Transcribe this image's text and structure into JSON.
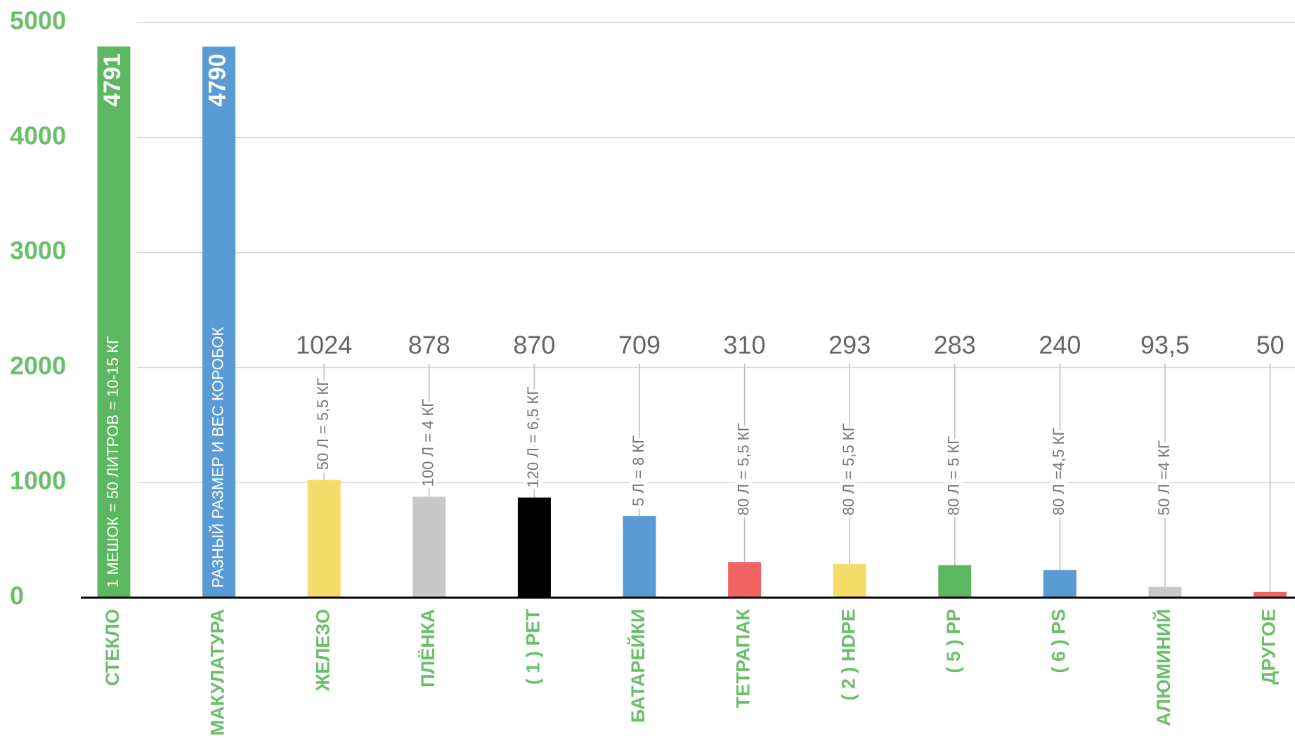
{
  "chart_data": {
    "type": "bar",
    "categories": [
      "СТЕКЛО",
      "МАКУЛАТУРА",
      "ЖЕЛЕЗО",
      "ПЛЁНКА",
      "( 1 ) PET",
      "БАТАРЕЙКИ",
      "ТЕТРАПАК",
      "( 2 ) HDPE",
      "( 5 ) PP",
      "( 6 ) PS",
      "АЛЮМИНИЙ",
      "ДРУГОЕ"
    ],
    "values": [
      4791,
      4790,
      1024,
      878,
      870,
      709,
      310,
      293,
      283,
      240,
      93.5,
      50
    ],
    "value_labels": [
      "4791",
      "4790",
      "1024",
      "878",
      "870",
      "709",
      "310",
      "293",
      "283",
      "240",
      "93,5",
      "50"
    ],
    "colors": [
      "#5cb860",
      "#5b9bd5",
      "#f5dc6a",
      "#c8c8c8",
      "#000000",
      "#5b9bd5",
      "#f06464",
      "#f5dc6a",
      "#5cb860",
      "#5b9bd5",
      "#c8c8c8",
      "#f06464"
    ],
    "annotations": [
      "1 МЕШОК = 50 ЛИТРОВ = 10-15 КГ",
      "РАЗНЫЙ РАЗМЕР И ВЕС КОРОБОК",
      "50 Л = 5,5 КГ",
      "100 Л = 4 КГ",
      "120 Л = 6,5 КГ",
      "5 Л = 8 КГ",
      "80 Л = 5,5 КГ",
      "80 Л = 5,5 КГ",
      "80 Л = 5 КГ",
      "80 Л =4,5 КГ",
      "50 Л =4 КГ",
      null
    ],
    "ylim": [
      0,
      5000
    ],
    "yticks": [
      0,
      1000,
      2000,
      3000,
      4000,
      5000
    ],
    "grid": true
  }
}
